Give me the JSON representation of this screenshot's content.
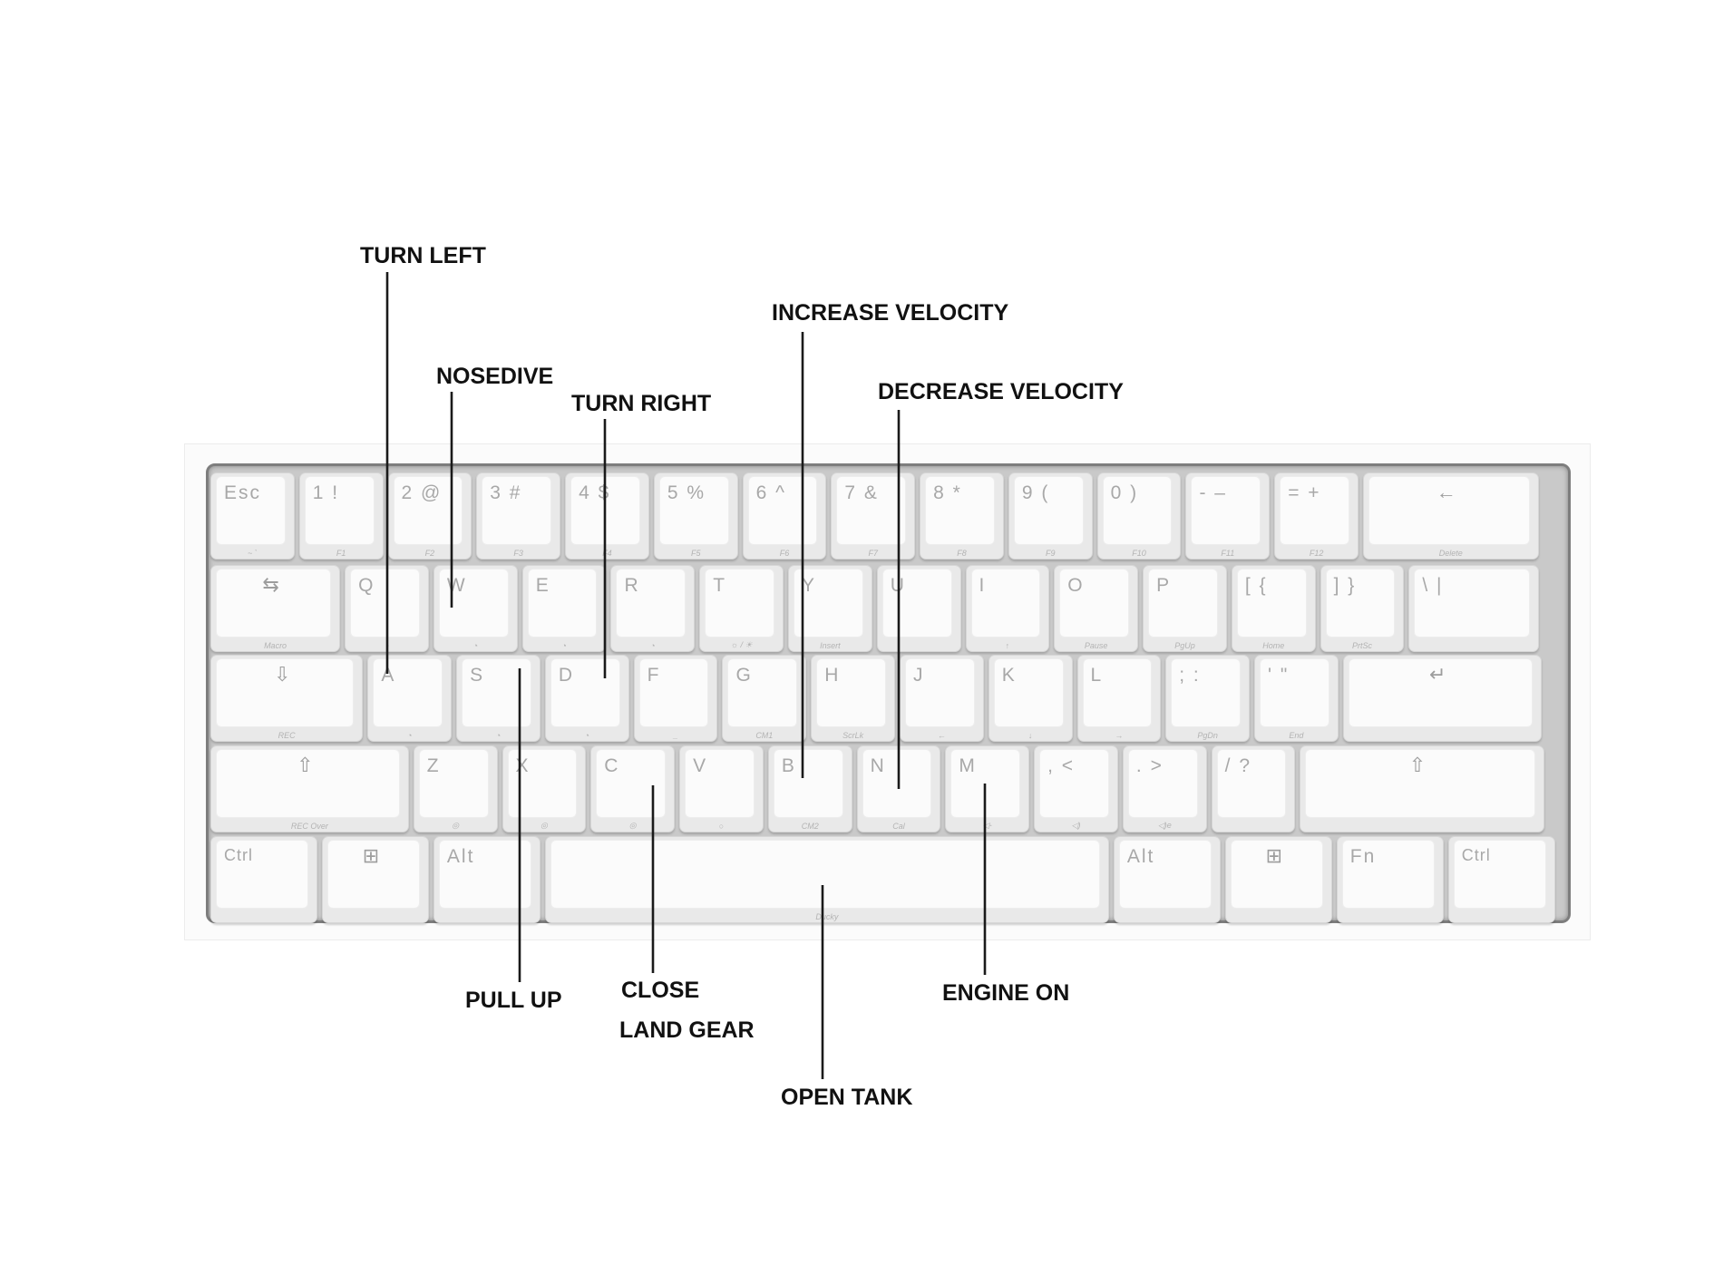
{
  "keyboard": {
    "rows": [
      [
        {
          "id": "esc",
          "legend": "Esc",
          "sub": "~ `"
        },
        {
          "id": "1",
          "legend": "1 !",
          "sub": "F1"
        },
        {
          "id": "2",
          "legend": "2 @",
          "sub": "F2"
        },
        {
          "id": "3",
          "legend": "3 #",
          "sub": "F3"
        },
        {
          "id": "4",
          "legend": "4 $",
          "sub": "F4"
        },
        {
          "id": "5",
          "legend": "5 %",
          "sub": "F5"
        },
        {
          "id": "6",
          "legend": "6 ^",
          "sub": "F6"
        },
        {
          "id": "7",
          "legend": "7 &",
          "sub": "F7"
        },
        {
          "id": "8",
          "legend": "8 *",
          "sub": "F8"
        },
        {
          "id": "9",
          "legend": "9 (",
          "sub": "F9"
        },
        {
          "id": "0",
          "legend": "0 )",
          "sub": "F10"
        },
        {
          "id": "minus",
          "legend": "- –",
          "sub": "F11"
        },
        {
          "id": "equal",
          "legend": "= +",
          "sub": "F12"
        },
        {
          "id": "backspace",
          "legend": "←",
          "sub": "Delete"
        }
      ],
      [
        {
          "id": "tab",
          "legend": "⇆",
          "sub": "Macro"
        },
        {
          "id": "q",
          "legend": "Q",
          "sub": "◔"
        },
        {
          "id": "w",
          "legend": "W",
          "sub": "◔"
        },
        {
          "id": "e",
          "legend": "E",
          "sub": "◔"
        },
        {
          "id": "r",
          "legend": "R",
          "sub": "◔"
        },
        {
          "id": "t",
          "legend": "T",
          "sub": "☼ / ☀"
        },
        {
          "id": "y",
          "legend": "Y",
          "sub": "Insert"
        },
        {
          "id": "u",
          "legend": "U",
          "sub": ""
        },
        {
          "id": "i",
          "legend": "I",
          "sub": "↑"
        },
        {
          "id": "o",
          "legend": "O",
          "sub": "Pause"
        },
        {
          "id": "p",
          "legend": "P",
          "sub": "PgUp"
        },
        {
          "id": "lbracket",
          "legend": "[ {",
          "sub": "Home"
        },
        {
          "id": "rbracket",
          "legend": "] }",
          "sub": "PrtSc"
        },
        {
          "id": "backslash",
          "legend": "\\ |",
          "sub": ""
        }
      ],
      [
        {
          "id": "caps",
          "legend": "⇩",
          "sub": "REC"
        },
        {
          "id": "a",
          "legend": "A",
          "sub": "◔"
        },
        {
          "id": "s",
          "legend": "S",
          "sub": "◔"
        },
        {
          "id": "d",
          "legend": "D",
          "sub": "◔"
        },
        {
          "id": "f",
          "legend": "F",
          "sub": "_"
        },
        {
          "id": "g",
          "legend": "G",
          "sub": "CM1"
        },
        {
          "id": "h",
          "legend": "H",
          "sub": "ScrLk"
        },
        {
          "id": "j",
          "legend": "J",
          "sub": "←"
        },
        {
          "id": "k",
          "legend": "K",
          "sub": "↓"
        },
        {
          "id": "l",
          "legend": "L",
          "sub": "→"
        },
        {
          "id": "semicolon",
          "legend": "; :",
          "sub": "PgDn"
        },
        {
          "id": "quote",
          "legend": "' \"",
          "sub": "End"
        },
        {
          "id": "enter",
          "legend": "↵",
          "sub": ""
        }
      ],
      [
        {
          "id": "lshift",
          "legend": "⇧",
          "sub": "REC Over"
        },
        {
          "id": "z",
          "legend": "Z",
          "sub": "◎"
        },
        {
          "id": "x",
          "legend": "X",
          "sub": "◎"
        },
        {
          "id": "c",
          "legend": "C",
          "sub": "◎"
        },
        {
          "id": "v",
          "legend": "V",
          "sub": "○"
        },
        {
          "id": "b",
          "legend": "B",
          "sub": "CM2"
        },
        {
          "id": "n",
          "legend": "N",
          "sub": "Cal"
        },
        {
          "id": "m",
          "legend": "M",
          "sub": "◁-"
        },
        {
          "id": "comma",
          "legend": ", <",
          "sub": "◁)"
        },
        {
          "id": "period",
          "legend": ". >",
          "sub": "◁)e"
        },
        {
          "id": "slash",
          "legend": "/ ?",
          "sub": ""
        },
        {
          "id": "rshift",
          "legend": "⇧",
          "sub": ""
        }
      ],
      [
        {
          "id": "lctrl",
          "legend": "Ctrl",
          "sub": ""
        },
        {
          "id": "lwin",
          "legend": "⊞",
          "sub": ""
        },
        {
          "id": "lalt",
          "legend": "Alt",
          "sub": ""
        },
        {
          "id": "space",
          "legend": "",
          "sub": "Ducky"
        },
        {
          "id": "ralt",
          "legend": "Alt",
          "sub": ""
        },
        {
          "id": "rwin",
          "legend": "⊞",
          "sub": ""
        },
        {
          "id": "fn",
          "legend": "Fn",
          "sub": ""
        },
        {
          "id": "rctrl",
          "legend": "Ctrl",
          "sub": ""
        }
      ]
    ]
  },
  "annotations": [
    {
      "id": "turn-left",
      "text": "TURN LEFT"
    },
    {
      "id": "nosedive",
      "text": "NOSEDIVE"
    },
    {
      "id": "turn-right",
      "text": "TURN RIGHT"
    },
    {
      "id": "increase-velocity",
      "text": "INCREASE VELOCITY"
    },
    {
      "id": "decrease-velocity",
      "text": "DECREASE VELOCITY"
    },
    {
      "id": "pull-up",
      "text": "PULL UP"
    },
    {
      "id": "close",
      "text": "CLOSE"
    },
    {
      "id": "land-gear",
      "text": "LAND GEAR"
    },
    {
      "id": "engine-on",
      "text": "ENGINE ON"
    },
    {
      "id": "open-tank",
      "text": "OPEN TANK"
    }
  ]
}
